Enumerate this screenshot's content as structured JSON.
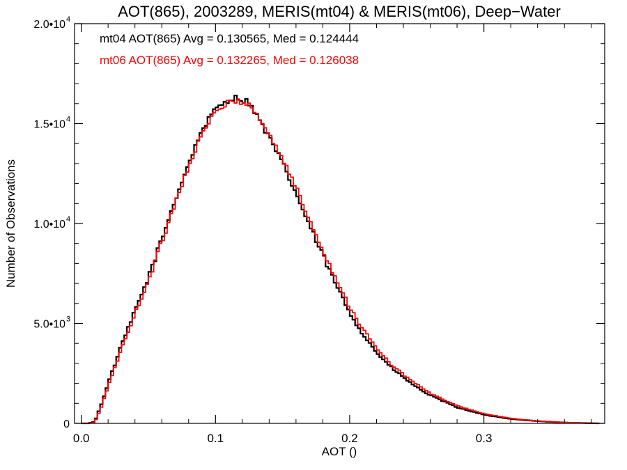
{
  "chart_data": {
    "type": "line",
    "step": true,
    "title": "AOT(865), 2003289, MERIS(mt04) & MERIS(mt06), Deep−Water",
    "xlabel": "AOT ()",
    "ylabel": "Number of Observations",
    "xlim": [
      -0.005,
      0.39
    ],
    "ylim": [
      0,
      20000
    ],
    "x_ticks": [
      {
        "value": 0.0,
        "label": "0.0"
      },
      {
        "value": 0.1,
        "label": "0.1"
      },
      {
        "value": 0.2,
        "label": "0.2"
      },
      {
        "value": 0.3,
        "label": "0.3"
      }
    ],
    "y_ticks": [
      {
        "value": 0,
        "label": "0",
        "sup": ""
      },
      {
        "value": 5000,
        "label": "5.0•10",
        "sup": "3"
      },
      {
        "value": 10000,
        "label": "1.0•10",
        "sup": "4"
      },
      {
        "value": 15000,
        "label": "1.5•10",
        "sup": "4"
      },
      {
        "value": 20000,
        "label": "2.0•10",
        "sup": "4"
      }
    ],
    "grid": false,
    "legend_position": "top-left",
    "x": [
      0.0,
      0.005,
      0.01,
      0.015,
      0.02,
      0.025,
      0.03,
      0.04,
      0.05,
      0.06,
      0.07,
      0.08,
      0.09,
      0.1,
      0.105,
      0.11,
      0.115,
      0.12,
      0.125,
      0.13,
      0.14,
      0.15,
      0.16,
      0.17,
      0.18,
      0.19,
      0.2,
      0.21,
      0.22,
      0.23,
      0.24,
      0.25,
      0.26,
      0.28,
      0.3,
      0.32,
      0.34,
      0.36,
      0.385
    ],
    "series": [
      {
        "name": "mt04",
        "color": "#000000",
        "legend": "mt04 AOT(865) Avg = 0.130565, Med = 0.124444",
        "values": [
          0,
          0,
          80,
          950,
          2000,
          2950,
          3900,
          5600,
          7300,
          9200,
          11200,
          13000,
          14700,
          15700,
          16000,
          16200,
          16300,
          16200,
          16050,
          15500,
          14300,
          13000,
          11500,
          9900,
          8400,
          6900,
          5550,
          4450,
          3550,
          2850,
          2300,
          1800,
          1400,
          800,
          430,
          220,
          110,
          40,
          0
        ]
      },
      {
        "name": "mt06",
        "color": "#ff0000",
        "legend": "mt06 AOT(865) Avg = 0.132265, Med = 0.126038",
        "values": [
          0,
          0,
          40,
          800,
          1850,
          2800,
          3700,
          5450,
          7150,
          9050,
          11050,
          12850,
          14500,
          15550,
          15850,
          16050,
          16150,
          16100,
          15950,
          15550,
          14450,
          13250,
          11800,
          10200,
          8700,
          7200,
          5850,
          4700,
          3750,
          3000,
          2450,
          1950,
          1500,
          880,
          480,
          250,
          120,
          45,
          0
        ]
      }
    ]
  }
}
